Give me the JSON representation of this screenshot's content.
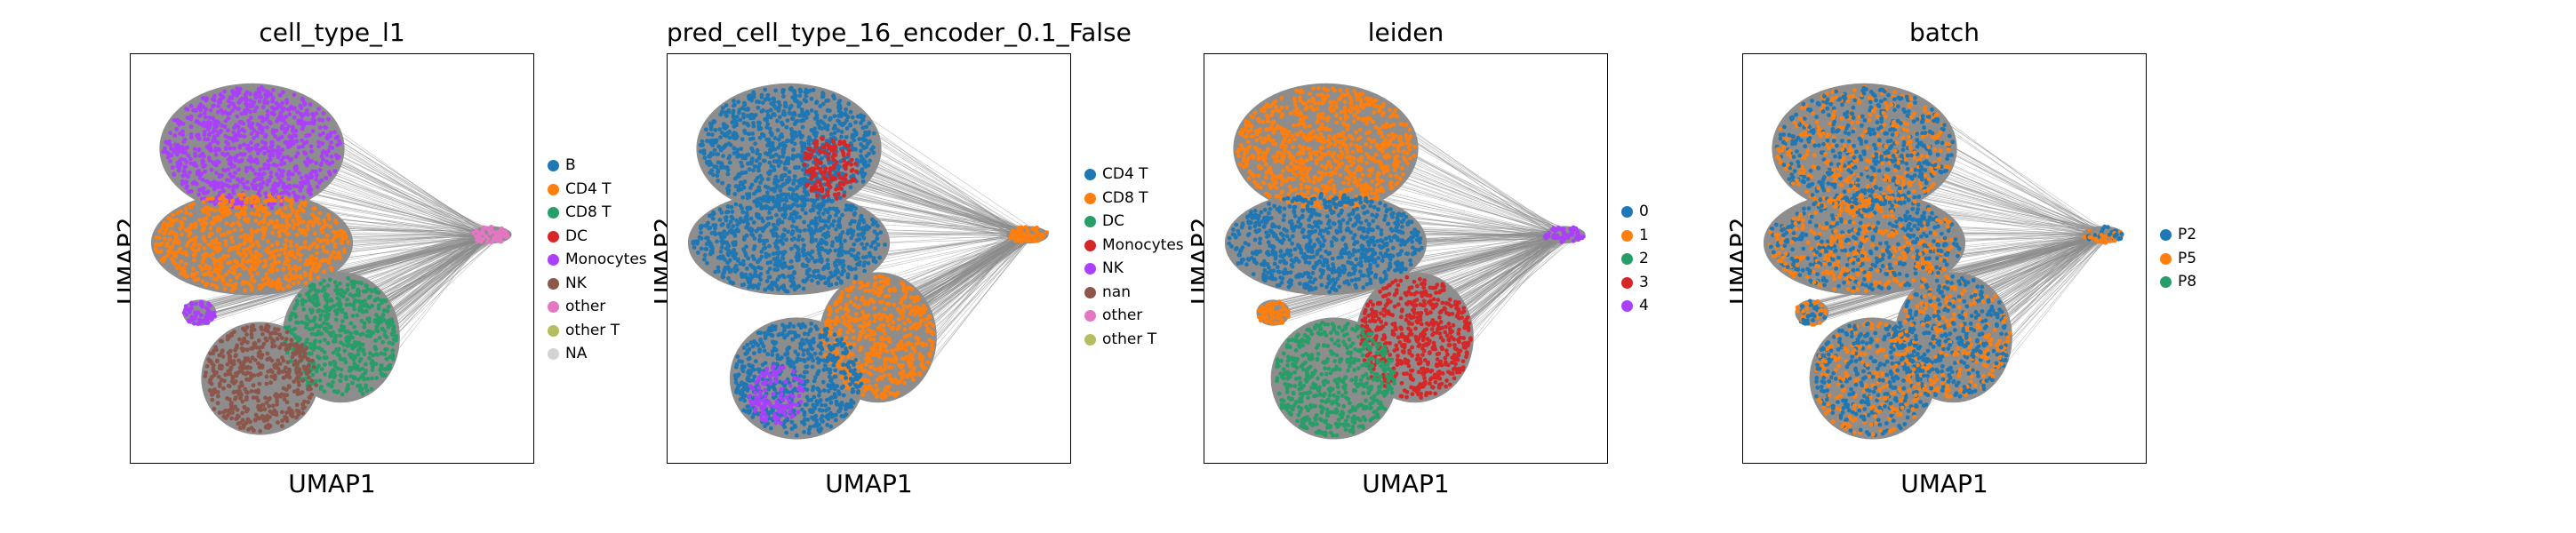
{
  "chart_data": [
    {
      "type": "scatter",
      "title": "cell_type_l1",
      "xlabel": "UMAP1",
      "ylabel": "UMAP2",
      "grid": false,
      "legend": "right",
      "legend_entries": [
        {
          "name": "B",
          "color": "#1f77b4"
        },
        {
          "name": "CD4 T",
          "color": "#ff7f0e"
        },
        {
          "name": "CD8 T",
          "color": "#279e68"
        },
        {
          "name": "DC",
          "color": "#d62728"
        },
        {
          "name": "Monocytes",
          "color": "#aa40fc"
        },
        {
          "name": "NK",
          "color": "#8c564b"
        },
        {
          "name": "other",
          "color": "#e377c2"
        },
        {
          "name": "other T",
          "color": "#b5bd61"
        },
        {
          "name": "NA",
          "color": "#d3d3d3"
        }
      ],
      "regions": [
        {
          "cx": 0.3,
          "cy": 0.77,
          "rx": 0.22,
          "ry": 0.15,
          "color": "#aa40fc"
        },
        {
          "cx": 0.3,
          "cy": 0.54,
          "rx": 0.24,
          "ry": 0.12,
          "color": "#ff7f0e"
        },
        {
          "cx": 0.52,
          "cy": 0.31,
          "rx": 0.14,
          "ry": 0.15,
          "color": "#279e68"
        },
        {
          "cx": 0.32,
          "cy": 0.21,
          "rx": 0.14,
          "ry": 0.13,
          "color": "#8c564b"
        },
        {
          "cx": 0.17,
          "cy": 0.37,
          "rx": 0.04,
          "ry": 0.03,
          "color": "#aa40fc"
        },
        {
          "cx": 0.89,
          "cy": 0.56,
          "rx": 0.05,
          "ry": 0.02,
          "color": "#e377c2"
        }
      ]
    },
    {
      "type": "scatter",
      "title": "pred_cell_type_16_encoder_0.1_False",
      "xlabel": "UMAP1",
      "ylabel": "UMAP2",
      "grid": false,
      "legend": "right",
      "legend_entries": [
        {
          "name": "CD4 T",
          "color": "#1f77b4"
        },
        {
          "name": "CD8 T",
          "color": "#ff7f0e"
        },
        {
          "name": "DC",
          "color": "#279e68"
        },
        {
          "name": "Monocytes",
          "color": "#d62728"
        },
        {
          "name": "NK",
          "color": "#aa40fc"
        },
        {
          "name": "nan",
          "color": "#8c564b"
        },
        {
          "name": "other",
          "color": "#e377c2"
        },
        {
          "name": "other T",
          "color": "#b5bd61"
        }
      ],
      "regions": [
        {
          "cx": 0.3,
          "cy": 0.77,
          "rx": 0.22,
          "ry": 0.15,
          "color": "#1f77b4"
        },
        {
          "cx": 0.3,
          "cy": 0.54,
          "rx": 0.24,
          "ry": 0.12,
          "color": "#1f77b4"
        },
        {
          "cx": 0.52,
          "cy": 0.31,
          "rx": 0.14,
          "ry": 0.15,
          "color": "#ff7f0e"
        },
        {
          "cx": 0.32,
          "cy": 0.21,
          "rx": 0.16,
          "ry": 0.14,
          "color": "#1f77b4"
        },
        {
          "cx": 0.27,
          "cy": 0.17,
          "rx": 0.07,
          "ry": 0.07,
          "color": "#aa40fc"
        },
        {
          "cx": 0.4,
          "cy": 0.72,
          "rx": 0.07,
          "ry": 0.08,
          "color": "#d62728"
        },
        {
          "cx": 0.89,
          "cy": 0.56,
          "rx": 0.05,
          "ry": 0.02,
          "color": "#ff7f0e"
        }
      ]
    },
    {
      "type": "scatter",
      "title": "leiden",
      "xlabel": "UMAP1",
      "ylabel": "UMAP2",
      "grid": false,
      "legend": "right",
      "legend_entries": [
        {
          "name": "0",
          "color": "#1f77b4"
        },
        {
          "name": "1",
          "color": "#ff7f0e"
        },
        {
          "name": "2",
          "color": "#279e68"
        },
        {
          "name": "3",
          "color": "#d62728"
        },
        {
          "name": "4",
          "color": "#aa40fc"
        }
      ],
      "regions": [
        {
          "cx": 0.3,
          "cy": 0.77,
          "rx": 0.22,
          "ry": 0.15,
          "color": "#ff7f0e"
        },
        {
          "cx": 0.3,
          "cy": 0.54,
          "rx": 0.24,
          "ry": 0.12,
          "color": "#1f77b4"
        },
        {
          "cx": 0.52,
          "cy": 0.31,
          "rx": 0.14,
          "ry": 0.15,
          "color": "#d62728"
        },
        {
          "cx": 0.32,
          "cy": 0.21,
          "rx": 0.15,
          "ry": 0.14,
          "color": "#279e68"
        },
        {
          "cx": 0.17,
          "cy": 0.37,
          "rx": 0.04,
          "ry": 0.03,
          "color": "#ff7f0e"
        },
        {
          "cx": 0.89,
          "cy": 0.56,
          "rx": 0.05,
          "ry": 0.02,
          "color": "#aa40fc"
        }
      ]
    },
    {
      "type": "scatter",
      "title": "batch",
      "xlabel": "UMAP1",
      "ylabel": "UMAP2",
      "grid": false,
      "legend": "right",
      "legend_entries": [
        {
          "name": "P2",
          "color": "#1f77b4"
        },
        {
          "name": "P5",
          "color": "#ff7f0e"
        },
        {
          "name": "P8",
          "color": "#279e68"
        }
      ],
      "regions": [
        {
          "cx": 0.3,
          "cy": 0.77,
          "rx": 0.22,
          "ry": 0.15,
          "color": "mix"
        },
        {
          "cx": 0.3,
          "cy": 0.54,
          "rx": 0.24,
          "ry": 0.12,
          "color": "mix"
        },
        {
          "cx": 0.52,
          "cy": 0.31,
          "rx": 0.14,
          "ry": 0.15,
          "color": "mix"
        },
        {
          "cx": 0.32,
          "cy": 0.21,
          "rx": 0.15,
          "ry": 0.14,
          "color": "mix"
        },
        {
          "cx": 0.17,
          "cy": 0.37,
          "rx": 0.04,
          "ry": 0.03,
          "color": "mix"
        },
        {
          "cx": 0.89,
          "cy": 0.56,
          "rx": 0.05,
          "ry": 0.02,
          "color": "mix"
        }
      ]
    }
  ]
}
